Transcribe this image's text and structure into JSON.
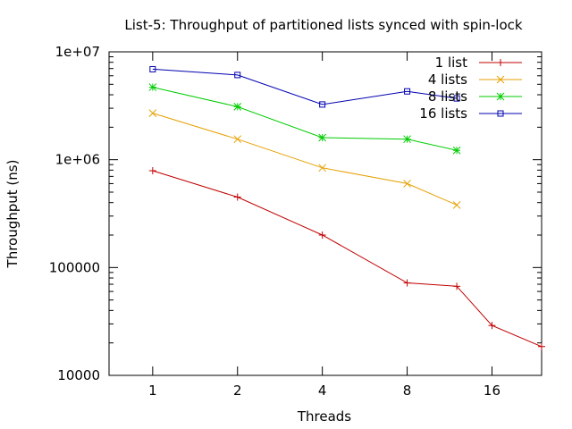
{
  "chart_data": {
    "type": "line",
    "title": "List-5: Throughput of partitioned lists synced with spin-lock",
    "xlabel": "Threads",
    "ylabel": "Throughput (ns)",
    "x_scale": "log2",
    "y_scale": "log10",
    "xlim": [
      0.7,
      24
    ],
    "ylim": [
      10000,
      10000000
    ],
    "x_ticks": [
      1,
      2,
      4,
      8,
      16
    ],
    "x_tick_labels": [
      "1",
      "2",
      "4",
      "8",
      "16"
    ],
    "y_ticks": [
      10000,
      100000,
      1000000,
      10000000
    ],
    "y_tick_labels": [
      "10000",
      "100000",
      "1e+06",
      "1e+07"
    ],
    "grid": false,
    "legend_position": "top-right",
    "series": [
      {
        "name": "1 list",
        "color": "#c00000",
        "marker": "plus",
        "points": [
          [
            1,
            790000
          ],
          [
            2,
            450000
          ],
          [
            4,
            200000
          ],
          [
            8,
            72000
          ],
          [
            12,
            67000
          ],
          [
            16,
            29000
          ],
          [
            24,
            18500
          ]
        ]
      },
      {
        "name": "4 lists",
        "color": "#e6a000",
        "marker": "cross",
        "points": [
          [
            1,
            2700000
          ],
          [
            2,
            1550000
          ],
          [
            4,
            840000
          ],
          [
            8,
            600000
          ],
          [
            12,
            380000
          ]
        ]
      },
      {
        "name": "8 lists",
        "color": "#00cc00",
        "marker": "star",
        "points": [
          [
            1,
            4700000
          ],
          [
            2,
            3100000
          ],
          [
            4,
            1600000
          ],
          [
            8,
            1550000
          ],
          [
            12,
            1220000
          ]
        ]
      },
      {
        "name": "16 lists",
        "color": "#0000b0",
        "marker": "square",
        "points": [
          [
            1,
            6900000
          ],
          [
            2,
            6100000
          ],
          [
            4,
            3250000
          ],
          [
            8,
            4300000
          ],
          [
            12,
            3700000
          ]
        ]
      }
    ]
  }
}
